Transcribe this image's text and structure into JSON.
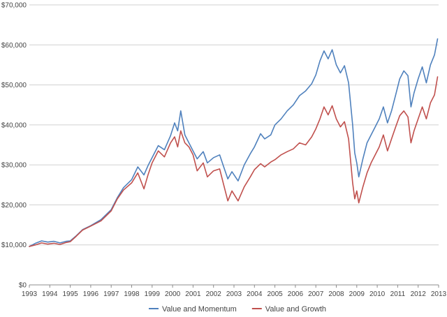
{
  "chart_data": {
    "type": "line",
    "title": "",
    "xlabel": "",
    "ylabel": "",
    "xlim": [
      1993,
      2013
    ],
    "ylim": [
      0,
      70000
    ],
    "x_ticks": [
      1993,
      1994,
      1995,
      1996,
      1997,
      1998,
      1999,
      2000,
      2001,
      2002,
      2003,
      2004,
      2005,
      2006,
      2007,
      2008,
      2009,
      2010,
      2011,
      2012,
      2013
    ],
    "x_tick_labels": [
      "1993",
      "1994",
      "1995",
      "1996",
      "1997",
      "1998",
      "1999",
      "2000",
      "2001",
      "2002",
      "2003",
      "2004",
      "2005",
      "2006",
      "2007",
      "2008",
      "2009",
      "2010",
      "2011",
      "2012",
      "2013"
    ],
    "y_ticks": [
      0,
      10000,
      20000,
      30000,
      40000,
      50000,
      60000,
      70000
    ],
    "y_tick_labels": [
      "$0",
      "$10,000",
      "$20,000",
      "$30,000",
      "$40,000",
      "$50,000",
      "$60,000",
      "$70,000"
    ],
    "grid": true,
    "legend_position": "bottom",
    "series": [
      {
        "name": "Value and Momentum",
        "color": "#4f81bd",
        "points": [
          [
            1993.0,
            9600
          ],
          [
            1993.3,
            10400
          ],
          [
            1993.6,
            11000
          ],
          [
            1993.9,
            10700
          ],
          [
            1994.2,
            10900
          ],
          [
            1994.5,
            10500
          ],
          [
            1994.8,
            10900
          ],
          [
            1995.0,
            11000
          ],
          [
            1995.3,
            12300
          ],
          [
            1995.6,
            13800
          ],
          [
            1996.0,
            14800
          ],
          [
            1996.5,
            16300
          ],
          [
            1997.0,
            18800
          ],
          [
            1997.3,
            21800
          ],
          [
            1997.6,
            24300
          ],
          [
            1998.0,
            26300
          ],
          [
            1998.3,
            29500
          ],
          [
            1998.6,
            27500
          ],
          [
            1998.8,
            29800
          ],
          [
            1999.0,
            31800
          ],
          [
            1999.3,
            34800
          ],
          [
            1999.6,
            33800
          ],
          [
            1999.9,
            37300
          ],
          [
            2000.1,
            40500
          ],
          [
            2000.25,
            38500
          ],
          [
            2000.4,
            43500
          ],
          [
            2000.6,
            37500
          ],
          [
            2000.8,
            35500
          ],
          [
            2001.0,
            33500
          ],
          [
            2001.2,
            31500
          ],
          [
            2001.5,
            33300
          ],
          [
            2001.7,
            30500
          ],
          [
            2002.0,
            31800
          ],
          [
            2002.3,
            32500
          ],
          [
            2002.5,
            29500
          ],
          [
            2002.7,
            26500
          ],
          [
            2002.9,
            28300
          ],
          [
            2003.2,
            26000
          ],
          [
            2003.5,
            30000
          ],
          [
            2003.8,
            32800
          ],
          [
            2004.0,
            34500
          ],
          [
            2004.3,
            37800
          ],
          [
            2004.5,
            36500
          ],
          [
            2004.8,
            37500
          ],
          [
            2005.0,
            40000
          ],
          [
            2005.3,
            41500
          ],
          [
            2005.6,
            43500
          ],
          [
            2005.9,
            45000
          ],
          [
            2006.2,
            47300
          ],
          [
            2006.5,
            48500
          ],
          [
            2006.8,
            50300
          ],
          [
            2007.0,
            52500
          ],
          [
            2007.2,
            56000
          ],
          [
            2007.4,
            58500
          ],
          [
            2007.6,
            56500
          ],
          [
            2007.8,
            58800
          ],
          [
            2008.0,
            55000
          ],
          [
            2008.2,
            53000
          ],
          [
            2008.4,
            54800
          ],
          [
            2008.6,
            50500
          ],
          [
            2008.8,
            40000
          ],
          [
            2008.9,
            33000
          ],
          [
            2009.0,
            30500
          ],
          [
            2009.1,
            27000
          ],
          [
            2009.3,
            31500
          ],
          [
            2009.5,
            35500
          ],
          [
            2009.7,
            37500
          ],
          [
            2009.9,
            39500
          ],
          [
            2010.1,
            41500
          ],
          [
            2010.3,
            44500
          ],
          [
            2010.5,
            40500
          ],
          [
            2010.7,
            43500
          ],
          [
            2010.9,
            47500
          ],
          [
            2011.1,
            51500
          ],
          [
            2011.3,
            53500
          ],
          [
            2011.5,
            52300
          ],
          [
            2011.65,
            44500
          ],
          [
            2011.8,
            48000
          ],
          [
            2012.0,
            51500
          ],
          [
            2012.2,
            54500
          ],
          [
            2012.4,
            50500
          ],
          [
            2012.6,
            55000
          ],
          [
            2012.8,
            57500
          ],
          [
            2012.95,
            61500
          ]
        ]
      },
      {
        "name": "Value and Growth",
        "color": "#c0504d",
        "points": [
          [
            1993.0,
            9600
          ],
          [
            1993.3,
            10000
          ],
          [
            1993.6,
            10500
          ],
          [
            1993.9,
            10200
          ],
          [
            1994.2,
            10400
          ],
          [
            1994.5,
            10100
          ],
          [
            1994.8,
            10600
          ],
          [
            1995.0,
            10800
          ],
          [
            1995.3,
            12200
          ],
          [
            1995.6,
            13700
          ],
          [
            1996.0,
            14700
          ],
          [
            1996.5,
            16000
          ],
          [
            1997.0,
            18500
          ],
          [
            1997.3,
            21500
          ],
          [
            1997.6,
            23700
          ],
          [
            1998.0,
            25500
          ],
          [
            1998.3,
            28000
          ],
          [
            1998.6,
            24000
          ],
          [
            1998.8,
            27500
          ],
          [
            1999.0,
            30500
          ],
          [
            1999.3,
            33500
          ],
          [
            1999.6,
            32000
          ],
          [
            1999.9,
            35500
          ],
          [
            2000.1,
            37000
          ],
          [
            2000.25,
            34500
          ],
          [
            2000.4,
            38500
          ],
          [
            2000.6,
            35500
          ],
          [
            2000.8,
            34500
          ],
          [
            2001.0,
            32500
          ],
          [
            2001.2,
            28500
          ],
          [
            2001.5,
            30500
          ],
          [
            2001.7,
            27000
          ],
          [
            2002.0,
            28500
          ],
          [
            2002.3,
            29000
          ],
          [
            2002.5,
            25000
          ],
          [
            2002.7,
            21000
          ],
          [
            2002.9,
            23500
          ],
          [
            2003.2,
            21000
          ],
          [
            2003.5,
            24500
          ],
          [
            2003.8,
            27000
          ],
          [
            2004.0,
            28800
          ],
          [
            2004.3,
            30300
          ],
          [
            2004.5,
            29500
          ],
          [
            2004.8,
            30700
          ],
          [
            2005.0,
            31300
          ],
          [
            2005.3,
            32500
          ],
          [
            2005.6,
            33300
          ],
          [
            2005.9,
            34000
          ],
          [
            2006.2,
            35500
          ],
          [
            2006.5,
            35000
          ],
          [
            2006.8,
            37000
          ],
          [
            2007.0,
            39000
          ],
          [
            2007.2,
            41500
          ],
          [
            2007.4,
            44500
          ],
          [
            2007.6,
            42500
          ],
          [
            2007.8,
            44800
          ],
          [
            2008.0,
            41500
          ],
          [
            2008.2,
            39500
          ],
          [
            2008.4,
            40800
          ],
          [
            2008.6,
            36500
          ],
          [
            2008.8,
            25500
          ],
          [
            2008.9,
            21500
          ],
          [
            2009.0,
            23500
          ],
          [
            2009.1,
            20500
          ],
          [
            2009.3,
            24500
          ],
          [
            2009.5,
            28000
          ],
          [
            2009.7,
            30500
          ],
          [
            2009.9,
            32500
          ],
          [
            2010.1,
            34500
          ],
          [
            2010.3,
            37500
          ],
          [
            2010.5,
            33500
          ],
          [
            2010.7,
            36500
          ],
          [
            2010.9,
            39500
          ],
          [
            2011.1,
            42300
          ],
          [
            2011.3,
            43500
          ],
          [
            2011.5,
            42000
          ],
          [
            2011.65,
            35500
          ],
          [
            2011.8,
            38500
          ],
          [
            2012.0,
            41500
          ],
          [
            2012.2,
            44500
          ],
          [
            2012.4,
            41500
          ],
          [
            2012.6,
            45500
          ],
          [
            2012.8,
            47500
          ],
          [
            2012.95,
            52000
          ]
        ]
      }
    ]
  }
}
